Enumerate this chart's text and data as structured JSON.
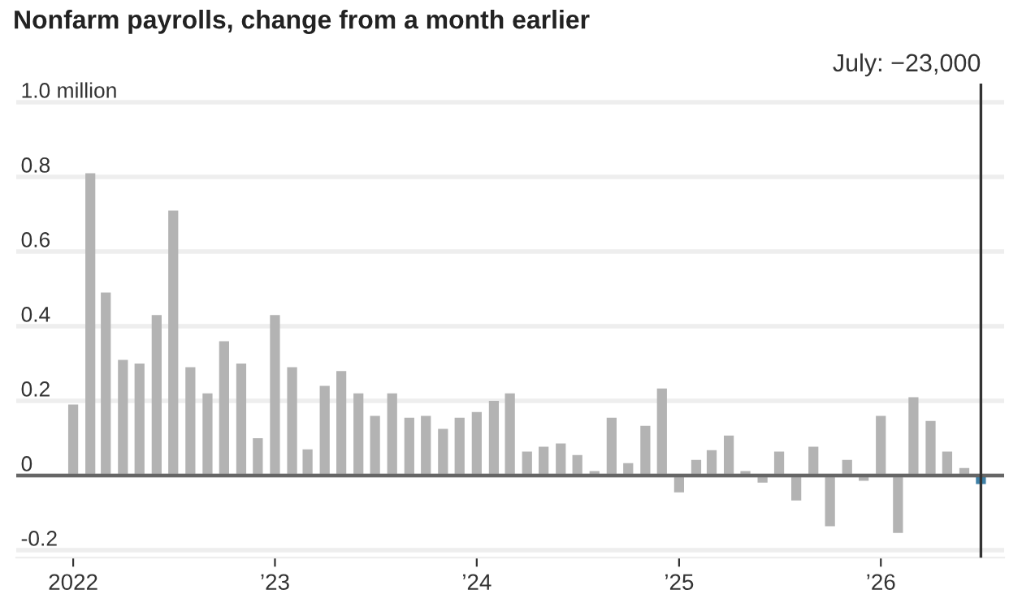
{
  "chart_data": {
    "type": "bar",
    "title": "Nonfarm payrolls, change from a month earlier",
    "x": [
      "2022-01",
      "2022-02",
      "2022-03",
      "2022-04",
      "2022-05",
      "2022-06",
      "2022-07",
      "2022-08",
      "2022-09",
      "2022-10",
      "2022-11",
      "2022-12",
      "2023-01",
      "2023-02",
      "2023-03",
      "2023-04",
      "2023-05",
      "2023-06",
      "2023-07",
      "2023-08",
      "2023-09",
      "2023-10",
      "2023-11",
      "2023-12",
      "2024-01",
      "2024-02",
      "2024-03",
      "2024-04",
      "2024-05",
      "2024-06",
      "2024-07",
      "2024-08",
      "2024-09",
      "2024-10",
      "2024-11",
      "2024-12",
      "2025-01",
      "2025-02",
      "2025-03",
      "2025-04",
      "2025-05",
      "2025-06",
      "2025-07",
      "2025-08",
      "2025-09",
      "2025-10",
      "2025-11",
      "2025-12",
      "2026-01",
      "2026-02",
      "2026-03",
      "2026-04",
      "2026-05",
      "2026-06",
      "2026-07"
    ],
    "values": [
      0.19,
      0.81,
      0.49,
      0.31,
      0.3,
      0.43,
      0.71,
      0.29,
      0.22,
      0.36,
      0.3,
      0.1,
      0.43,
      0.29,
      0.07,
      0.24,
      0.28,
      0.22,
      0.16,
      0.22,
      0.155,
      0.16,
      0.125,
      0.155,
      0.17,
      0.2,
      0.22,
      0.064,
      0.077,
      0.086,
      0.055,
      0.012,
      0.155,
      0.033,
      0.133,
      0.233,
      -0.045,
      0.042,
      0.068,
      0.107,
      0.012,
      -0.019,
      0.064,
      -0.067,
      0.077,
      -0.136,
      0.042,
      -0.014,
      0.16,
      -0.154,
      0.21,
      0.146,
      0.064,
      0.02,
      -0.023
    ],
    "colors": [
      "#b3b3b3",
      "#b3b3b3",
      "#b3b3b3",
      "#b3b3b3",
      "#b3b3b3",
      "#b3b3b3",
      "#b3b3b3",
      "#b3b3b3",
      "#b3b3b3",
      "#b3b3b3",
      "#b3b3b3",
      "#b3b3b3",
      "#b3b3b3",
      "#b3b3b3",
      "#b3b3b3",
      "#b3b3b3",
      "#b3b3b3",
      "#b3b3b3",
      "#b3b3b3",
      "#b3b3b3",
      "#b3b3b3",
      "#b3b3b3",
      "#b3b3b3",
      "#b3b3b3",
      "#b3b3b3",
      "#b3b3b3",
      "#b3b3b3",
      "#b3b3b3",
      "#b3b3b3",
      "#b3b3b3",
      "#b3b3b3",
      "#b3b3b3",
      "#b3b3b3",
      "#b3b3b3",
      "#b3b3b3",
      "#b3b3b3",
      "#b3b3b3",
      "#b3b3b3",
      "#b3b3b3",
      "#b3b3b3",
      "#b3b3b3",
      "#b3b3b3",
      "#b3b3b3",
      "#b3b3b3",
      "#b3b3b3",
      "#b3b3b3",
      "#b3b3b3",
      "#b3b3b3",
      "#b3b3b3",
      "#b3b3b3",
      "#b3b3b3",
      "#b3b3b3",
      "#b3b3b3",
      "#b3b3b3",
      "#3d7fa6"
    ],
    "xlim": [
      "2021-09-20",
      "2026-08-12"
    ],
    "xticks": [
      {
        "value": "2022-01",
        "label": "2022"
      },
      {
        "value": "2023-01",
        "label": "’23"
      },
      {
        "value": "2024-01",
        "label": "’24"
      },
      {
        "value": "2025-01",
        "label": "’25"
      },
      {
        "value": "2026-01",
        "label": "’26"
      }
    ],
    "ylim": [
      -0.22,
      1.05
    ],
    "yticks": [
      {
        "value": 1.0,
        "label": "1.0 million"
      },
      0.8,
      0.6,
      0.4,
      0.2,
      0,
      -0.2
    ],
    "grid": "y",
    "ref_lines": [
      {
        "axis": "x",
        "value": "2026-07",
        "label": "July: −23,000",
        "color": "#333333"
      }
    ]
  }
}
